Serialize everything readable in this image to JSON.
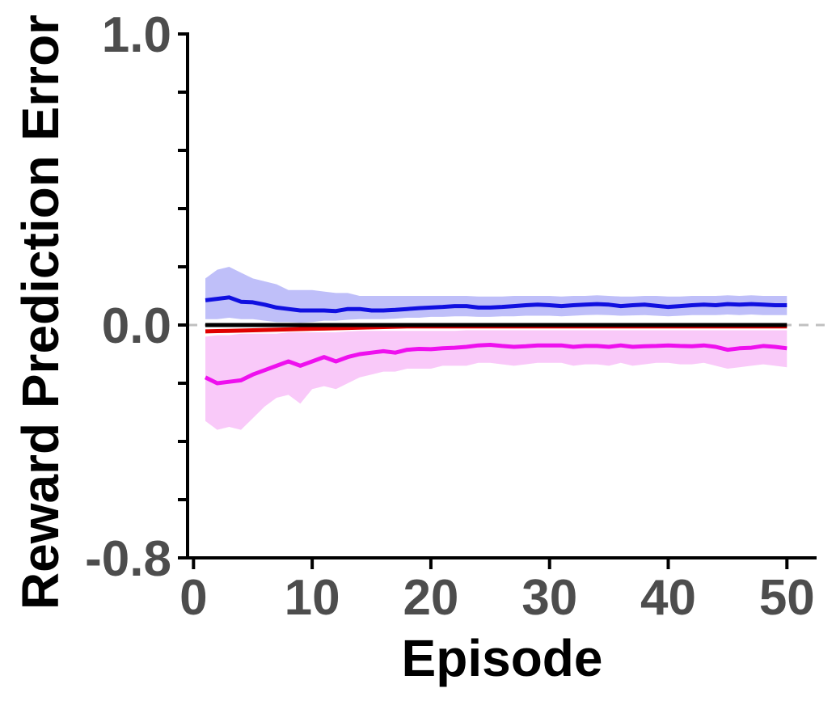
{
  "chart_data": {
    "type": "line",
    "title": "",
    "xlabel": "Episode",
    "ylabel": "Reward Prediction Error",
    "xlim": [
      -0.5,
      52.5
    ],
    "ylim": [
      -0.8,
      1.0
    ],
    "x_ticks": [
      0,
      10,
      20,
      30,
      40,
      50
    ],
    "x_tick_labels": [
      "0",
      "10",
      "20",
      "30",
      "40",
      "50"
    ],
    "y_ticks": [
      -0.8,
      -0.6,
      -0.4,
      -0.2,
      0.0,
      0.2,
      0.4,
      0.6,
      0.8,
      1.0
    ],
    "y_tick_labels": [
      "-0.8",
      "",
      "",
      "",
      "0.0",
      "",
      "",
      "",
      "",
      "1.0"
    ],
    "reference_line": {
      "y": 0.0,
      "style": "dashed",
      "color": "#c0c0c0"
    },
    "grid": false,
    "legend": "none",
    "x": [
      1,
      2,
      3,
      4,
      5,
      6,
      7,
      8,
      9,
      10,
      11,
      12,
      13,
      14,
      15,
      16,
      17,
      18,
      19,
      20,
      21,
      22,
      23,
      24,
      25,
      26,
      27,
      28,
      29,
      30,
      31,
      32,
      33,
      34,
      35,
      36,
      37,
      38,
      39,
      40,
      41,
      42,
      43,
      44,
      45,
      46,
      47,
      48,
      49,
      50
    ],
    "series": [
      {
        "color": "#1010e0",
        "band_color": "#b4b4f8",
        "values": [
          0.085,
          0.09,
          0.095,
          0.08,
          0.078,
          0.07,
          0.06,
          0.055,
          0.05,
          0.05,
          0.05,
          0.048,
          0.055,
          0.055,
          0.05,
          0.05,
          0.052,
          0.055,
          0.058,
          0.06,
          0.062,
          0.065,
          0.065,
          0.06,
          0.06,
          0.062,
          0.065,
          0.068,
          0.07,
          0.068,
          0.065,
          0.068,
          0.07,
          0.072,
          0.07,
          0.065,
          0.068,
          0.07,
          0.066,
          0.062,
          0.065,
          0.068,
          0.07,
          0.068,
          0.072,
          0.07,
          0.072,
          0.07,
          0.068,
          0.068
        ],
        "lower": [
          0.02,
          0.02,
          0.025,
          0.02,
          0.02,
          0.015,
          0.01,
          0.01,
          0.008,
          0.01,
          0.015,
          0.015,
          0.018,
          0.02,
          0.02,
          0.02,
          0.022,
          0.025,
          0.025,
          0.028,
          0.028,
          0.03,
          0.03,
          0.028,
          0.028,
          0.03,
          0.03,
          0.032,
          0.032,
          0.032,
          0.03,
          0.032,
          0.034,
          0.035,
          0.034,
          0.032,
          0.033,
          0.034,
          0.032,
          0.03,
          0.032,
          0.034,
          0.034,
          0.034,
          0.036,
          0.034,
          0.036,
          0.034,
          0.034,
          0.034
        ],
        "upper": [
          0.16,
          0.19,
          0.2,
          0.18,
          0.16,
          0.15,
          0.14,
          0.12,
          0.12,
          0.12,
          0.115,
          0.11,
          0.11,
          0.1,
          0.1,
          0.1,
          0.1,
          0.1,
          0.1,
          0.1,
          0.1,
          0.1,
          0.1,
          0.098,
          0.098,
          0.098,
          0.1,
          0.1,
          0.1,
          0.1,
          0.098,
          0.1,
          0.1,
          0.102,
          0.1,
          0.098,
          0.098,
          0.1,
          0.1,
          0.098,
          0.098,
          0.1,
          0.1,
          0.1,
          0.102,
          0.1,
          0.102,
          0.1,
          0.1,
          0.1
        ]
      },
      {
        "color": "#ee10ee",
        "band_color": "#f8c0f8",
        "values": [
          -0.18,
          -0.2,
          -0.195,
          -0.19,
          -0.17,
          -0.155,
          -0.14,
          -0.125,
          -0.14,
          -0.125,
          -0.11,
          -0.125,
          -0.11,
          -0.1,
          -0.095,
          -0.09,
          -0.095,
          -0.085,
          -0.082,
          -0.083,
          -0.08,
          -0.078,
          -0.075,
          -0.07,
          -0.068,
          -0.072,
          -0.075,
          -0.073,
          -0.07,
          -0.07,
          -0.07,
          -0.075,
          -0.072,
          -0.072,
          -0.075,
          -0.07,
          -0.075,
          -0.073,
          -0.072,
          -0.07,
          -0.072,
          -0.073,
          -0.07,
          -0.075,
          -0.085,
          -0.08,
          -0.078,
          -0.072,
          -0.075,
          -0.08
        ],
        "lower": [
          -0.33,
          -0.36,
          -0.35,
          -0.36,
          -0.32,
          -0.28,
          -0.25,
          -0.24,
          -0.27,
          -0.22,
          -0.21,
          -0.22,
          -0.2,
          -0.18,
          -0.17,
          -0.16,
          -0.16,
          -0.15,
          -0.15,
          -0.15,
          -0.14,
          -0.14,
          -0.14,
          -0.13,
          -0.13,
          -0.135,
          -0.14,
          -0.135,
          -0.13,
          -0.13,
          -0.13,
          -0.14,
          -0.135,
          -0.135,
          -0.14,
          -0.13,
          -0.14,
          -0.135,
          -0.13,
          -0.13,
          -0.135,
          -0.135,
          -0.13,
          -0.14,
          -0.15,
          -0.145,
          -0.14,
          -0.135,
          -0.14,
          -0.145
        ],
        "upper": [
          -0.04,
          -0.035,
          -0.035,
          -0.03,
          -0.03,
          -0.03,
          -0.03,
          -0.025,
          -0.025,
          -0.025,
          -0.025,
          -0.025,
          -0.022,
          -0.02,
          -0.02,
          -0.02,
          -0.02,
          -0.02,
          -0.02,
          -0.02,
          -0.02,
          -0.02,
          -0.018,
          -0.018,
          -0.018,
          -0.018,
          -0.018,
          -0.018,
          -0.018,
          -0.018,
          -0.018,
          -0.018,
          -0.018,
          -0.018,
          -0.018,
          -0.018,
          -0.018,
          -0.018,
          -0.018,
          -0.018,
          -0.018,
          -0.018,
          -0.018,
          -0.018,
          -0.018,
          -0.018,
          -0.018,
          -0.018,
          -0.018,
          -0.018
        ]
      },
      {
        "color": "#e00000",
        "values": [
          -0.022,
          -0.021,
          -0.02,
          -0.019,
          -0.018,
          -0.017,
          -0.016,
          -0.015,
          -0.014,
          -0.013,
          -0.012,
          -0.011,
          -0.01,
          -0.009,
          -0.008,
          -0.007,
          -0.006,
          -0.005,
          -0.005,
          -0.005,
          -0.005,
          -0.005,
          -0.005,
          -0.005,
          -0.005,
          -0.005,
          -0.005,
          -0.005,
          -0.005,
          -0.005,
          -0.005,
          -0.005,
          -0.005,
          -0.005,
          -0.005,
          -0.005,
          -0.005,
          -0.005,
          -0.005,
          -0.005,
          -0.005,
          -0.005,
          -0.005,
          -0.005,
          -0.005,
          -0.005,
          -0.005,
          -0.005,
          -0.005,
          -0.005
        ]
      },
      {
        "color": "#000000",
        "values": [
          0.0,
          0.0,
          0.0,
          0.0,
          0.0,
          0.0,
          0.0,
          0.0,
          0.0,
          0.0,
          0.0,
          0.0,
          0.0,
          0.0,
          0.0,
          0.0,
          0.0,
          0.0,
          0.0,
          0.0,
          0.0,
          0.0,
          0.0,
          0.0,
          0.0,
          0.0,
          0.0,
          0.0,
          0.0,
          0.0,
          0.0,
          0.0,
          0.0,
          0.0,
          0.0,
          0.0,
          0.0,
          0.0,
          0.0,
          0.0,
          0.0,
          0.0,
          0.0,
          0.0,
          0.0,
          0.0,
          0.0,
          0.0,
          0.0,
          0.0
        ]
      }
    ]
  }
}
